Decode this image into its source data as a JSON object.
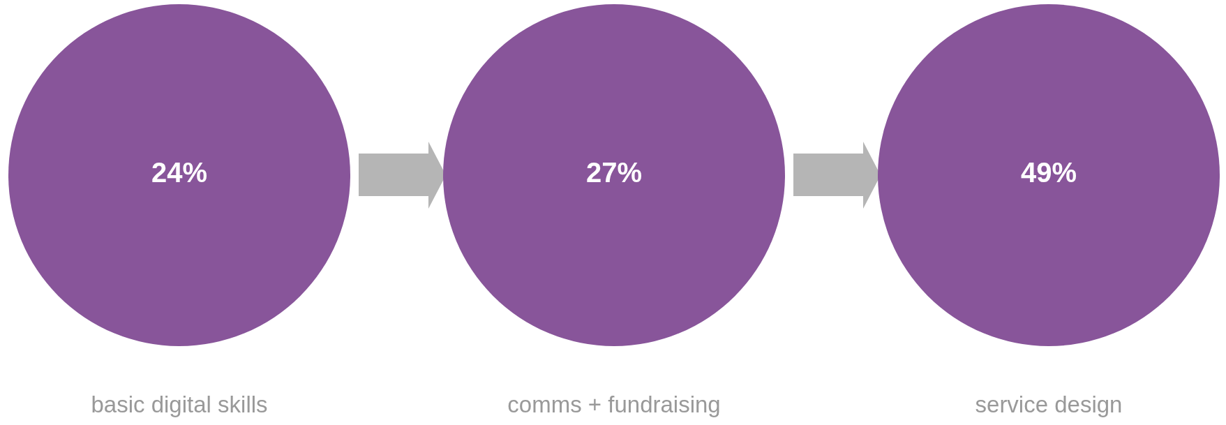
{
  "chart_data": {
    "type": "other",
    "categories": [
      "basic digital skills",
      "comms + fundraising",
      "service design"
    ],
    "values": [
      24,
      27,
      49
    ],
    "value_labels": [
      "24%",
      "27%",
      "49%"
    ],
    "color": "#88559a"
  }
}
